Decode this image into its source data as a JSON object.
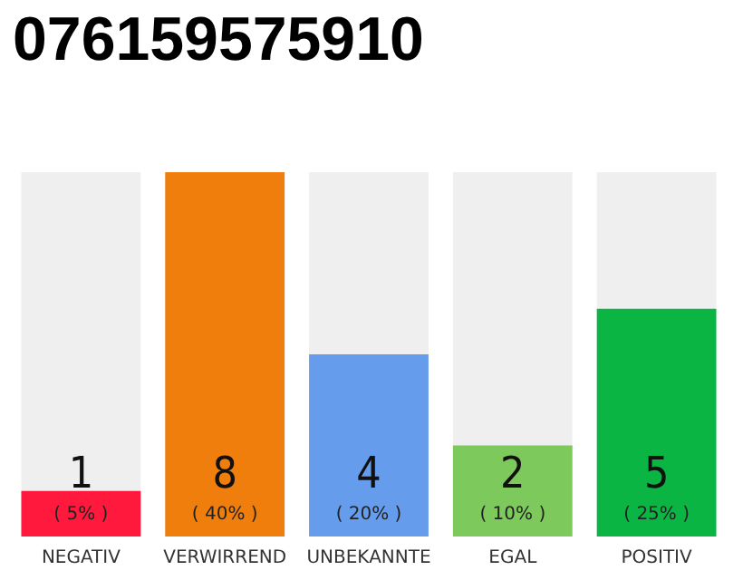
{
  "chart_data": {
    "type": "bar",
    "title": "076159575910",
    "categories": [
      "NEGATIV",
      "VERWIRREND",
      "UNBEKANNTE",
      "EGAL",
      "POSITIV"
    ],
    "values": [
      1,
      8,
      4,
      2,
      5
    ],
    "colors": [
      "#ff1a3d",
      "#f07e0c",
      "#659dec",
      "#7dc95c",
      "#0bb543"
    ],
    "data_labels": true,
    "annotations": [
      "( 5% )",
      "( 40% )",
      "( 20% )",
      "( 10% )",
      "( 25% )"
    ]
  }
}
